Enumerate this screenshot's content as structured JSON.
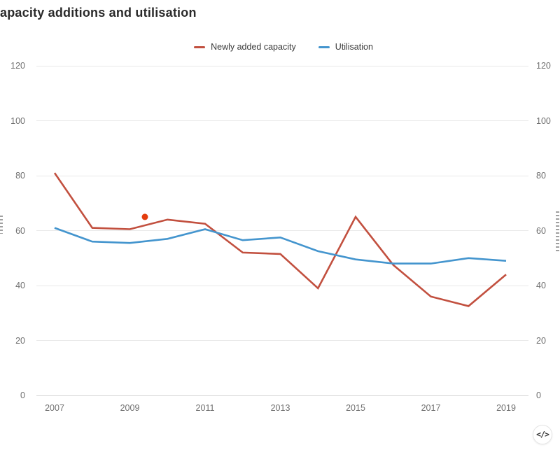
{
  "title": "apacity additions and utilisation",
  "legend": {
    "items": [
      {
        "label": "Newly added capacity",
        "color": "#c2503f"
      },
      {
        "label": "Utilisation",
        "color": "#4495ce"
      }
    ]
  },
  "chart_data": {
    "type": "line",
    "title": "apacity additions and utilisation",
    "x": [
      2007,
      2008,
      2009,
      2010,
      2011,
      2012,
      2013,
      2014,
      2015,
      2016,
      2017,
      2018,
      2019
    ],
    "x_tick_labels": [
      "2007",
      "2009",
      "2011",
      "2013",
      "2015",
      "2017",
      "2019"
    ],
    "y_ticks": [
      0,
      20,
      40,
      60,
      80,
      100,
      120
    ],
    "ylim": [
      0,
      120
    ],
    "grid": "horizontal",
    "dual_y_axis_labels": true,
    "legend_position": "top-center",
    "series": [
      {
        "name": "Newly added capacity",
        "color": "#c2503f",
        "values": [
          81,
          61,
          60.5,
          64,
          62.5,
          52,
          51.5,
          39,
          65,
          47.5,
          36,
          32.5,
          44
        ]
      },
      {
        "name": "Utilisation",
        "color": "#4495ce",
        "values": [
          61,
          56,
          55.5,
          57,
          60.5,
          56.5,
          57.5,
          52.5,
          49.5,
          48,
          48,
          50,
          49
        ]
      }
    ],
    "annotation_point": {
      "x": 2009.4,
      "y": 65,
      "color": "#e43d0e",
      "series": "Newly added capacity"
    }
  },
  "embed_button": {
    "label": "</>"
  }
}
